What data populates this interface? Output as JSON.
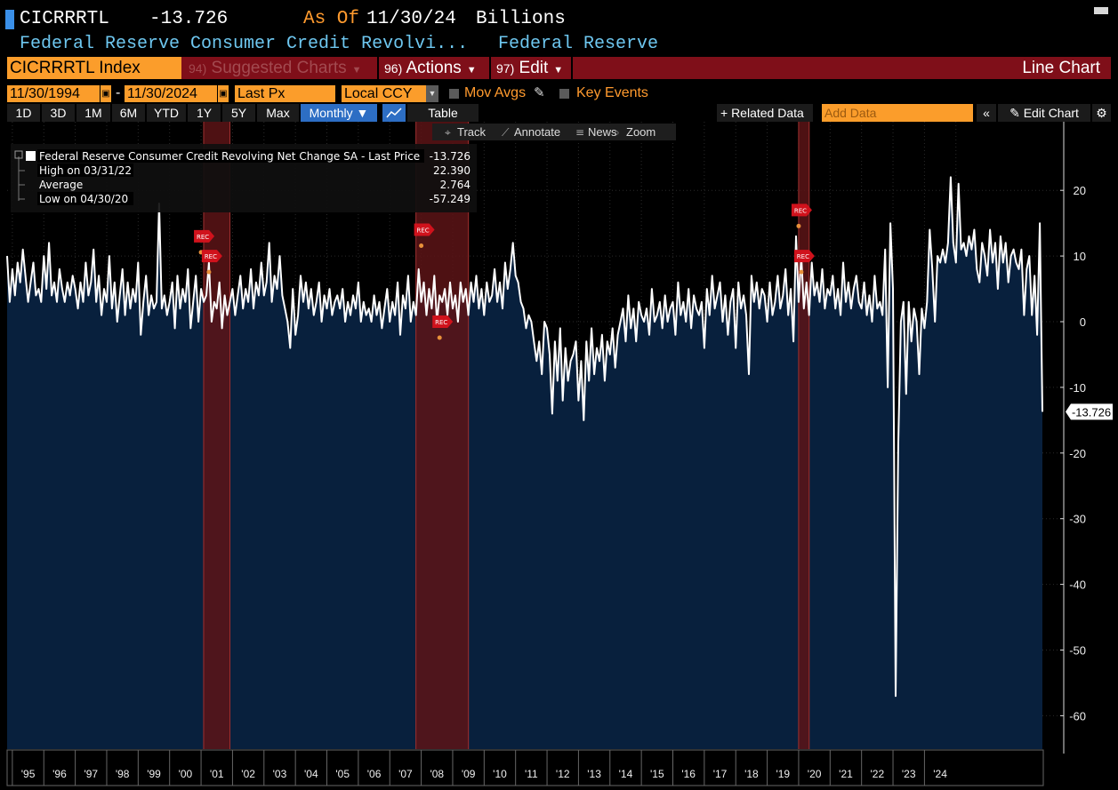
{
  "header": {
    "ticker": "CICRRRTL",
    "last_value": "-13.726",
    "as_of_label": "As Of",
    "as_of_date": "11/30/24",
    "units": "Billions",
    "security_name": "Federal Reserve Consumer Credit Revolvi...",
    "source": "Federal Reserve"
  },
  "menu_bar": {
    "index_field": "CICRRRTL Index",
    "suggested": {
      "num": "94)",
      "label": "Suggested Charts"
    },
    "actions": {
      "num": "96)",
      "label": "Actions"
    },
    "edit": {
      "num": "97)",
      "label": "Edit"
    },
    "chart_type": "Line Chart"
  },
  "options_bar": {
    "start_date": "11/30/1994",
    "separator": "-",
    "end_date": "11/30/2024",
    "price_field": "Last Px",
    "currency": "Local CCY",
    "mov_avgs": "Mov Avgs",
    "key_events": "Key Events"
  },
  "period_bar": {
    "periods": [
      "1D",
      "3D",
      "1M",
      "6M",
      "YTD",
      "1Y",
      "5Y",
      "Max"
    ],
    "frequency": "Monthly ▼",
    "table": "Table",
    "related": "+ Related Data",
    "add_data_placeholder": "Add Data",
    "collapse": "«",
    "edit_chart": "Edit Chart"
  },
  "toolbar": {
    "track": "Track",
    "annotate": "Annotate",
    "news": "News",
    "zoom": "Zoom"
  },
  "legend": {
    "series": "Federal Reserve Consumer Credit Revolving Net Change SA - Last Price",
    "series_value": "-13.726",
    "high_label": "High on 03/31/22",
    "high_value": "22.390",
    "avg_label": "Average",
    "avg_value": "2.764",
    "low_label": "Low on 04/30/20",
    "low_value": "-57.249"
  },
  "colors": {
    "background": "#000000",
    "area_fill": "#08203d",
    "line": "#ffffff",
    "recession_band": "#5c1416",
    "orange": "#fb9d2b",
    "menu_red": "#7f0f19",
    "axis_blue": "#6ec7f0"
  },
  "chart_data": {
    "type": "area",
    "xlabel": "",
    "ylabel": "",
    "ylim": [
      -64,
      29
    ],
    "grid": true,
    "y_ticks": [
      20,
      10,
      0,
      -10,
      -20,
      -30,
      -40,
      -50,
      -60
    ],
    "x_tick_labels": [
      "'95",
      "'96",
      "'97",
      "'98",
      "'99",
      "'00",
      "'01",
      "'02",
      "'03",
      "'04",
      "'05",
      "'06",
      "'07",
      "'08",
      "'09",
      "'10",
      "'11",
      "'12",
      "'13",
      "'14",
      "'15",
      "'16",
      "'17",
      "'18",
      "'19",
      "'20",
      "'21",
      "'22",
      "'23",
      "'24"
    ],
    "last_label": "-13.726",
    "recessions": [
      {
        "start": "2001-03",
        "end": "2001-11"
      },
      {
        "start": "2007-12",
        "end": "2009-06"
      },
      {
        "start": "2020-02",
        "end": "2020-04"
      }
    ],
    "rec_markers": [
      {
        "date": "2001-01",
        "value": 13
      },
      {
        "date": "2001-04",
        "value": 10
      },
      {
        "date": "2008-01",
        "value": 14
      },
      {
        "date": "2008-08",
        "value": 0
      },
      {
        "date": "2020-01",
        "value": 17
      },
      {
        "date": "2020-02",
        "value": 10
      }
    ],
    "start_date": "1994-11",
    "values": [
      10,
      3,
      8,
      4,
      9,
      6,
      11,
      7,
      3,
      6,
      9,
      4,
      5,
      3,
      10,
      5,
      12,
      4,
      6,
      3,
      8,
      5,
      3,
      6,
      4,
      7,
      5,
      2,
      6,
      3,
      9,
      4,
      6,
      11,
      3,
      7,
      1,
      5,
      3,
      10,
      2,
      6,
      0,
      4,
      8,
      1,
      6,
      2,
      5,
      3,
      9,
      -2,
      3,
      7,
      1,
      4,
      2,
      3,
      18,
      2,
      4,
      1,
      3,
      6,
      -1,
      7,
      2,
      5,
      3,
      8,
      -1,
      3,
      7,
      0,
      5,
      3,
      4,
      9,
      0,
      3,
      2,
      6,
      -1,
      4,
      1,
      3,
      5,
      1,
      4,
      7,
      2,
      5,
      3,
      8,
      2,
      6,
      4,
      9,
      4,
      6,
      12,
      3,
      7,
      5,
      10,
      4,
      2,
      0,
      -4,
      5,
      -2,
      1,
      7,
      3,
      6,
      2,
      5,
      1,
      3,
      6,
      0,
      4,
      2,
      5,
      1,
      3,
      4,
      2,
      5,
      0,
      3,
      1,
      4,
      2,
      6,
      0,
      3,
      1,
      2,
      0,
      4,
      1,
      3,
      -1,
      2,
      5,
      0,
      3,
      1,
      6,
      -2,
      4,
      2,
      7,
      0,
      3,
      1,
      8,
      3,
      6,
      1,
      5,
      2,
      7,
      0,
      4,
      3,
      5,
      1,
      6,
      2,
      4,
      0,
      6,
      3,
      5,
      1,
      6,
      3,
      7,
      2,
      5,
      1,
      6,
      3,
      4,
      8,
      3,
      6,
      2,
      9,
      5,
      8,
      12,
      7,
      6,
      3,
      2,
      -1,
      1,
      0,
      -3,
      -6,
      -3,
      -8,
      0,
      -1,
      -5,
      -14,
      -3,
      -9,
      -1,
      -12,
      -4,
      -9,
      -6,
      -5,
      -3,
      -12,
      -6,
      -15,
      -3,
      -9,
      -1,
      -8,
      -4,
      -6,
      -2,
      -9,
      -3,
      -5,
      -1,
      -7,
      -2,
      0,
      2,
      -3,
      4,
      -1,
      2,
      -3,
      3,
      1,
      0,
      2,
      -2,
      5,
      0,
      1,
      3,
      -1,
      4,
      0,
      2,
      3,
      -2,
      6,
      1,
      3,
      0,
      5,
      -1,
      4,
      2,
      1,
      3,
      -4,
      5,
      1,
      7,
      2,
      4,
      6,
      0,
      4,
      -2,
      3,
      5,
      -4,
      6,
      2,
      4,
      1,
      -8,
      7,
      3,
      6,
      2,
      5,
      4,
      0,
      6,
      1,
      3,
      7,
      2,
      4,
      8,
      1,
      5,
      -3,
      13,
      3,
      10,
      2,
      6,
      1,
      9,
      4,
      6,
      3,
      8,
      2,
      5,
      4,
      7,
      2,
      5,
      1,
      9,
      3,
      6,
      2,
      5,
      7,
      3,
      2,
      6,
      1,
      4,
      0,
      7,
      2,
      3,
      1,
      11,
      -10,
      15,
      5,
      -57,
      -19,
      0,
      3,
      -11,
      3,
      -3,
      2,
      0,
      -8,
      2,
      -1,
      3,
      14,
      8,
      0,
      10,
      9,
      11,
      9,
      12,
      22,
      12,
      9,
      21,
      11,
      12,
      10,
      13,
      11,
      14,
      8,
      6,
      12,
      10,
      7,
      14,
      9,
      12,
      5,
      13,
      9,
      12,
      6,
      10,
      11,
      9,
      8,
      11,
      1,
      8,
      10,
      1,
      7,
      -2,
      15,
      -13.726
    ]
  }
}
